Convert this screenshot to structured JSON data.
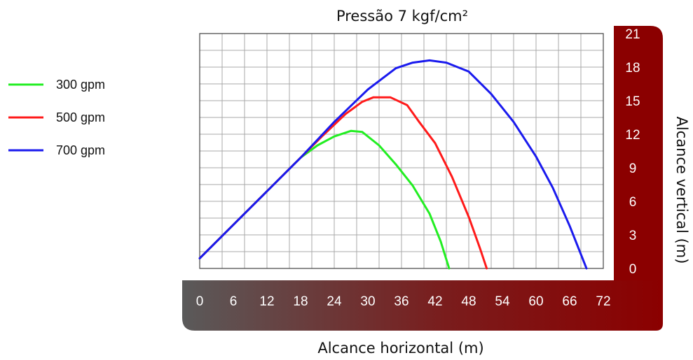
{
  "chart_data": {
    "type": "line",
    "title": "Pressão 7 kgf/cm²",
    "xlabel": "Alcance horizontal (m)",
    "ylabel": "Alcance vertical (m)",
    "xlim": [
      0,
      72
    ],
    "ylim": [
      0,
      21
    ],
    "x_ticks": [
      "0",
      "6",
      "12",
      "18",
      "24",
      "30",
      "36",
      "42",
      "48",
      "54",
      "60",
      "66",
      "72"
    ],
    "y_ticks": [
      "0",
      "3",
      "6",
      "9",
      "12",
      "15",
      "18",
      "21"
    ],
    "grid": true,
    "legend_position": "left",
    "series": [
      {
        "name": "300 gpm",
        "color": "#22ee22",
        "points": [
          [
            0,
            0.9
          ],
          [
            6,
            3.9
          ],
          [
            12,
            6.9
          ],
          [
            18,
            9.9
          ],
          [
            21,
            11.0
          ],
          [
            24,
            11.8
          ],
          [
            27,
            12.3
          ],
          [
            29,
            12.2
          ],
          [
            32,
            11.0
          ],
          [
            35,
            9.3
          ],
          [
            38,
            7.4
          ],
          [
            41,
            4.9
          ],
          [
            43,
            2.4
          ],
          [
            44.5,
            0
          ]
        ]
      },
      {
        "name": "500 gpm",
        "color": "#ff1a1a",
        "points": [
          [
            0,
            0.9
          ],
          [
            6,
            3.9
          ],
          [
            12,
            6.9
          ],
          [
            18,
            9.9
          ],
          [
            22,
            11.9
          ],
          [
            26,
            13.8
          ],
          [
            29,
            14.9
          ],
          [
            31,
            15.3
          ],
          [
            34,
            15.3
          ],
          [
            37,
            14.6
          ],
          [
            39,
            13.2
          ],
          [
            42,
            11.2
          ],
          [
            45,
            8.2
          ],
          [
            48,
            4.6
          ],
          [
            50,
            1.8
          ],
          [
            51.2,
            0
          ]
        ]
      },
      {
        "name": "700 gpm",
        "color": "#1a1aee",
        "points": [
          [
            0,
            0.9
          ],
          [
            6,
            3.9
          ],
          [
            12,
            6.9
          ],
          [
            18,
            9.9
          ],
          [
            24,
            13.1
          ],
          [
            30,
            16.0
          ],
          [
            35,
            17.9
          ],
          [
            38,
            18.4
          ],
          [
            41,
            18.6
          ],
          [
            44,
            18.4
          ],
          [
            48,
            17.6
          ],
          [
            52,
            15.6
          ],
          [
            56,
            13.1
          ],
          [
            60,
            10.0
          ],
          [
            63,
            7.2
          ],
          [
            66,
            3.8
          ],
          [
            69,
            0
          ]
        ]
      }
    ]
  }
}
